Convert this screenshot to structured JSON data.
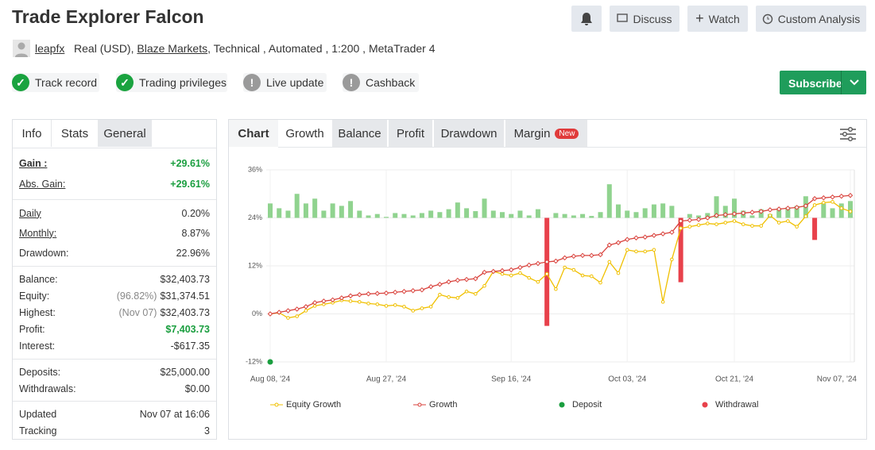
{
  "header": {
    "title": "Trade Explorer Falcon",
    "buttons": [
      "Discuss",
      "Watch",
      "Custom Analysis"
    ]
  },
  "account": {
    "user": "leapfx",
    "type": "Real (USD),",
    "broker": "Blaze Markets",
    "details": ", Technical , Automated , 1:200 , MetaTrader 4"
  },
  "badges": [
    "Track record",
    "Trading privileges",
    "Live update",
    "Cashback"
  ],
  "subscribe": "Subscribe",
  "stats_tabs": [
    "Info",
    "Stats",
    "General"
  ],
  "stats": [
    [
      {
        "label": "Gain :",
        "value": "+29.61%",
        "color": "#1a9e3f",
        "link": true
      },
      {
        "label": "Abs. Gain:",
        "value": "+29.61%",
        "color": "#1a9e3f",
        "link": true
      }
    ],
    [
      {
        "label": "Daily",
        "value": "0.20%",
        "link": true
      },
      {
        "label": "Monthly:",
        "value": "8.87%",
        "link": true
      },
      {
        "label": "Drawdown:",
        "value": "22.96%"
      }
    ],
    [
      {
        "label": "Balance:",
        "value": "$32,403.73"
      },
      {
        "label": "Equity:",
        "note": "(96.82%)",
        "value": "$31,374.51"
      },
      {
        "label": "Highest:",
        "note": "(Nov 07)",
        "value": "$32,403.73"
      },
      {
        "label": "Profit:",
        "value": "$7,403.73",
        "color": "#1a9e3f"
      },
      {
        "label": "Interest:",
        "value": "-$617.35"
      }
    ],
    [
      {
        "label": "Deposits:",
        "value": "$25,000.00"
      },
      {
        "label": "Withdrawals:",
        "value": "$0.00"
      }
    ],
    [
      {
        "label": "Updated",
        "value": "Nov 07 at 16:06"
      },
      {
        "label": "Tracking",
        "value": 3
      }
    ]
  ],
  "chart_tabs": [
    "Chart",
    "Growth",
    "Balance",
    "Profit",
    "Drawdown",
    "Margin"
  ],
  "new_badge": "New",
  "chart_data": {
    "type": "line",
    "categories": [
      "Aug 08, '24",
      null,
      null,
      null,
      null,
      null,
      null,
      null,
      null,
      null,
      null,
      null,
      null,
      "Aug 27, '24",
      null,
      null,
      null,
      null,
      null,
      null,
      null,
      null,
      null,
      null,
      null,
      null,
      null,
      "Sep 16, '24",
      null,
      null,
      null,
      null,
      null,
      null,
      null,
      null,
      null,
      null,
      null,
      null,
      "Oct 03, '24",
      null,
      null,
      null,
      null,
      null,
      null,
      null,
      null,
      null,
      null,
      null,
      "Oct 21, '24",
      null,
      null,
      null,
      null,
      null,
      null,
      null,
      null,
      null,
      null,
      null,
      null,
      "Nov 07, '24"
    ],
    "ylim": [
      -12,
      36
    ],
    "yticks": [
      {
        "value": -12,
        "label": "-12%"
      },
      {
        "value": 0,
        "label": "0%"
      },
      {
        "value": 12,
        "label": "12%"
      },
      {
        "value": 24,
        "label": "24%"
      },
      {
        "value": 36,
        "label": "36%"
      }
    ],
    "y2lim": [
      -3,
      1
    ],
    "grid": true,
    "series": [
      {
        "name": "Equity Growth",
        "color": "#f0c000",
        "values": [
          0,
          0.3,
          -1,
          -0.6,
          0.8,
          2.0,
          2.4,
          2.8,
          3.4,
          3.2,
          3.0,
          2.6,
          2.4,
          2.0,
          2.2,
          1.8,
          0.8,
          1.4,
          1.8,
          4.8,
          4.2,
          4.0,
          5.6,
          5.0,
          7.0,
          10.6,
          10.0,
          9.6,
          10.2,
          9.0,
          8.0,
          10.0,
          6.2,
          11.6,
          11.0,
          9.6,
          9.4,
          7.8,
          13.0,
          10.2,
          16.0,
          15.6,
          15.6,
          16.0,
          3.0,
          13.6,
          21.4,
          21.8,
          22.2,
          22.6,
          22.4,
          22.8,
          23.2,
          22.4,
          22.0,
          22.0,
          24.6,
          22.8,
          23.2,
          21.8,
          24.4,
          27.2,
          27.8,
          28.0,
          26.4,
          25.6
        ]
      },
      {
        "name": "Growth",
        "color": "#d9413b",
        "values": [
          0,
          0.4,
          0.8,
          1.2,
          1.8,
          2.8,
          3.2,
          3.5,
          4.0,
          4.5,
          4.8,
          5.0,
          5.1,
          5.2,
          5.4,
          5.6,
          5.8,
          6.0,
          6.8,
          7.4,
          8.0,
          8.4,
          8.6,
          8.8,
          10.4,
          10.6,
          10.8,
          11.0,
          11.6,
          12.2,
          12.6,
          13.0,
          13.2,
          14.0,
          14.4,
          14.6,
          14.6,
          14.8,
          17.2,
          17.8,
          18.6,
          19.0,
          19.2,
          19.6,
          20.0,
          20.4,
          23.2,
          23.4,
          23.6,
          24.0,
          24.6,
          24.8,
          25.0,
          25.2,
          25.4,
          25.6,
          26.0,
          26.2,
          26.4,
          26.6,
          27.0,
          28.8,
          29.0,
          29.2,
          29.4,
          29.61
        ]
      },
      {
        "axis": "y2",
        "color": "#90d38f",
        "negative_color": "#e8414b",
        "values": [
          0.3,
          0.2,
          0.15,
          0.5,
          0.3,
          0.4,
          0.15,
          0.3,
          0.25,
          0.35,
          0.15,
          0.05,
          0.08,
          0.02,
          0.1,
          0.08,
          0.05,
          0.1,
          0.15,
          0.12,
          0.18,
          0.32,
          0.2,
          0.14,
          0.4,
          0.15,
          0.12,
          0.08,
          0.15,
          0.05,
          0.18,
          -2.25,
          0.1,
          0.08,
          0.05,
          0.08,
          0.04,
          0.12,
          0.7,
          0.28,
          0.15,
          0.12,
          0.2,
          0.28,
          0.3,
          0.25,
          -1.34,
          0.08,
          0.05,
          0.1,
          0.45,
          0.25,
          0.4,
          0.15,
          0.05,
          0.18,
          0.08,
          0.2,
          0.22,
          0.25,
          0.45,
          -0.46,
          0.3,
          0.2,
          0.3,
          0.35
        ]
      }
    ],
    "deposit": {
      "name": "Deposit",
      "color": "#1a9e3f"
    },
    "withdrawal": {
      "name": "Withdrawal",
      "color": "#e8414b"
    }
  }
}
